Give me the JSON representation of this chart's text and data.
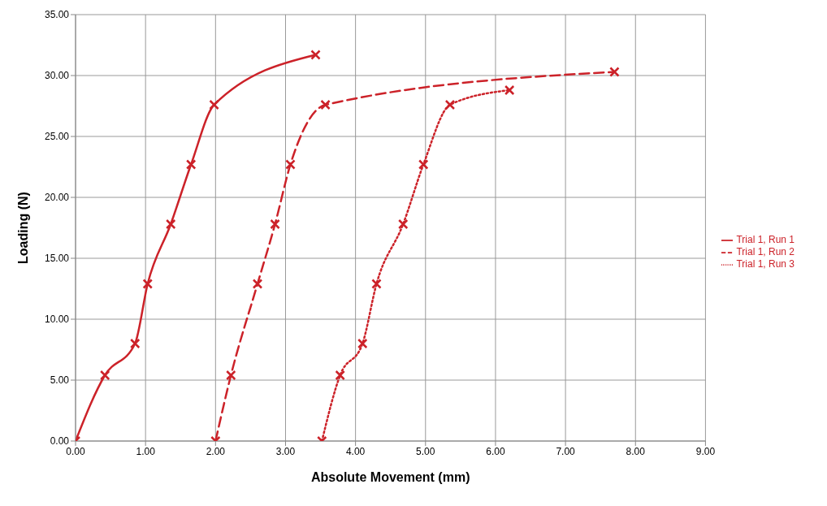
{
  "chart_data": {
    "type": "line",
    "xlabel": "Absolute Movement (mm)",
    "ylabel": "Loading (N)",
    "xlim": [
      0,
      9
    ],
    "ylim": [
      0,
      35
    ],
    "xticks": [
      {
        "value": 0,
        "label": "0.00"
      },
      {
        "value": 1,
        "label": "1.00"
      },
      {
        "value": 2,
        "label": "2.00"
      },
      {
        "value": 3,
        "label": "3.00"
      },
      {
        "value": 4,
        "label": "4.00"
      },
      {
        "value": 5,
        "label": "5.00"
      },
      {
        "value": 6,
        "label": "6.00"
      },
      {
        "value": 7,
        "label": "7.00"
      },
      {
        "value": 8,
        "label": "8.00"
      },
      {
        "value": 9,
        "label": "9.00"
      }
    ],
    "yticks": [
      {
        "value": 0,
        "label": "0.00"
      },
      {
        "value": 5,
        "label": "5.00"
      },
      {
        "value": 10,
        "label": "10.00"
      },
      {
        "value": 15,
        "label": "15.00"
      },
      {
        "value": 20,
        "label": "20.00"
      },
      {
        "value": 25,
        "label": "25.00"
      },
      {
        "value": 30,
        "label": "30.00"
      },
      {
        "value": 35,
        "label": "35.00"
      }
    ],
    "grid": true,
    "legend": "right",
    "marker": "cross",
    "series": [
      {
        "name": "Trial 1, Run 1",
        "color": "#cc2229",
        "line_style": "solid",
        "x": [
          0,
          0.42,
          0.85,
          1.03,
          1.36,
          1.65,
          1.98,
          3.43
        ],
        "values": [
          0,
          5.4,
          8.0,
          12.9,
          17.8,
          22.7,
          27.6,
          31.7
        ]
      },
      {
        "name": "Trial 1, Run 2",
        "color": "#cc2229",
        "line_style": "dashed",
        "x": [
          2.0,
          2.22,
          2.6,
          2.85,
          3.07,
          3.57,
          7.7
        ],
        "values": [
          0,
          5.4,
          12.9,
          17.8,
          22.7,
          27.6,
          30.3
        ]
      },
      {
        "name": "Trial 1, Run 3",
        "color": "#cc2229",
        "line_style": "dotted",
        "x": [
          3.52,
          3.78,
          4.1,
          4.3,
          4.68,
          4.97,
          5.35,
          6.2
        ],
        "values": [
          0,
          5.4,
          8.0,
          12.9,
          17.8,
          22.7,
          27.6,
          28.8
        ]
      }
    ]
  }
}
